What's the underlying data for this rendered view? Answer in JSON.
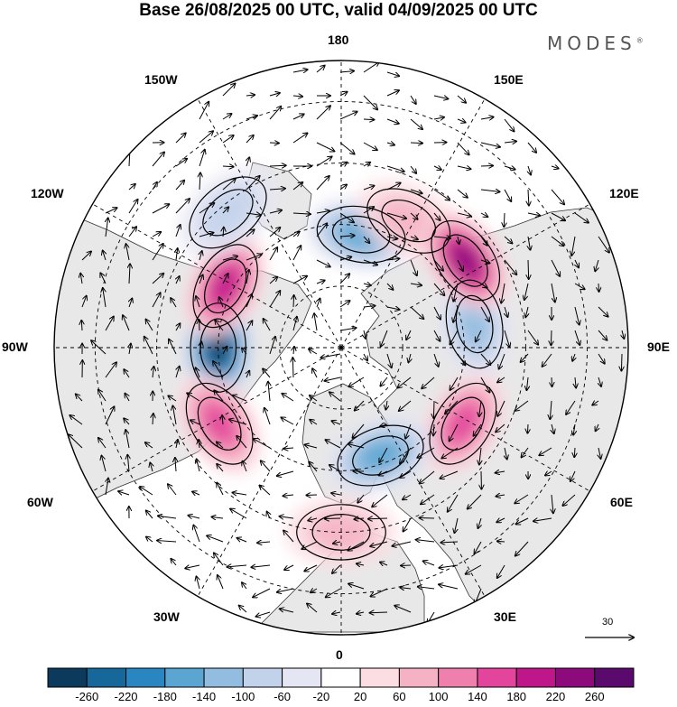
{
  "title": "Base 26/08/2025 00 UTC, valid 04/09/2025 00 UTC",
  "brand": "MODES",
  "brand_mark": "®",
  "longitude_labels": {
    "top": "180",
    "bottom": "0",
    "left": "90W",
    "right": "90E",
    "nw_upper": "150W",
    "nw_lower": "120W",
    "ne_upper": "150E",
    "ne_lower": "120E",
    "sw_upper": "60W",
    "sw_lower": "30W",
    "se_upper": "60E",
    "se_lower": "30E"
  },
  "reference_vector": {
    "value": "30"
  },
  "colorbar": {
    "ticks": [
      "-260",
      "-220",
      "-180",
      "-140",
      "-100",
      "-60",
      "-20",
      "20",
      "60",
      "100",
      "140",
      "180",
      "220",
      "260"
    ],
    "colors": [
      "#0c3a5c",
      "#16679a",
      "#2a86c0",
      "#5aa5d2",
      "#93bde0",
      "#c2d2ea",
      "#e5e6f3",
      "#ffffff",
      "#fbdde2",
      "#f5b2c4",
      "#ef80ae",
      "#e2459b",
      "#bf1689",
      "#8c0a7c",
      "#5a0a6c"
    ]
  },
  "anomaly_centers": [
    {
      "lon": 170,
      "lat": 62,
      "value": -150
    },
    {
      "lon": -90,
      "lat": 60,
      "value": -270
    },
    {
      "lon": 100,
      "lat": 57,
      "value": -130
    },
    {
      "lon": 152,
      "lat": 55,
      "value": 90
    },
    {
      "lon": 125,
      "lat": 53,
      "value": 230
    },
    {
      "lon": -118,
      "lat": 58,
      "value": 180
    },
    {
      "lon": -58,
      "lat": 55,
      "value": 170
    },
    {
      "lon": 58,
      "lat": 55,
      "value": 170
    },
    {
      "lon": 20,
      "lat": 62,
      "value": -170
    },
    {
      "lon": -140,
      "lat": 47,
      "value": -70
    },
    {
      "lon": 0,
      "lat": 45,
      "value": 60
    }
  ]
}
